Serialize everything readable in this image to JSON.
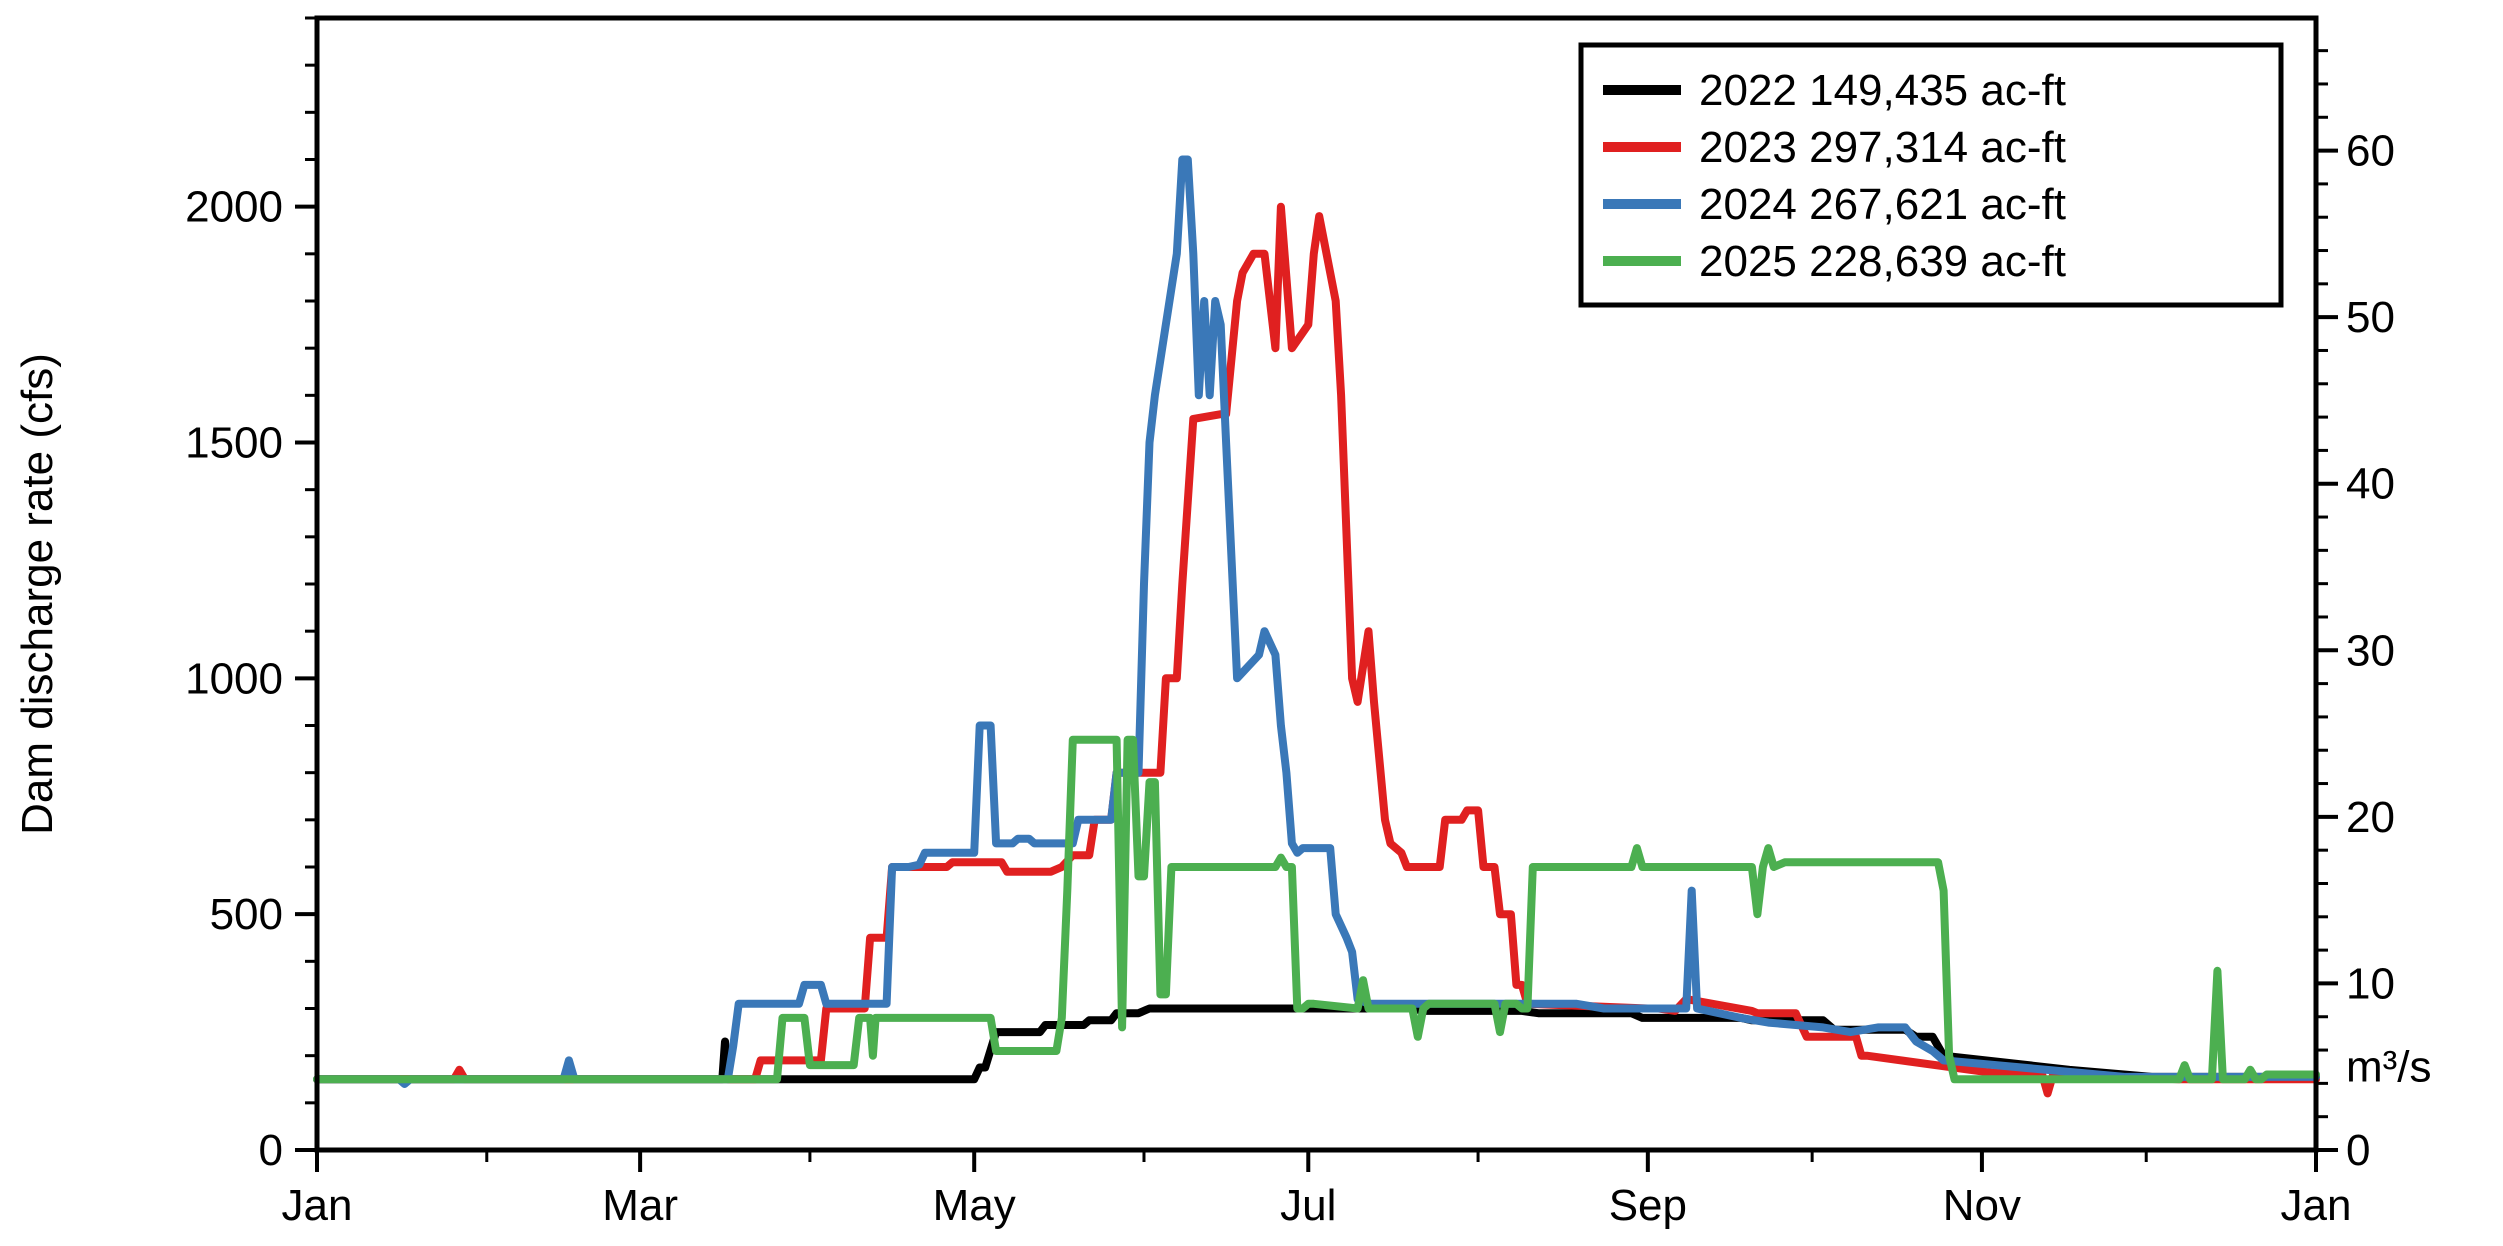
{
  "chart_data": {
    "type": "line",
    "ylabel": "Dam discharge rate (cfs)",
    "y2_unit_label": "m³/s",
    "xlim": [
      0,
      365
    ],
    "ylim": [
      0,
      2400
    ],
    "y2lim": [
      0,
      67.96
    ],
    "x_ticks": [
      {
        "pos": 0,
        "label": "Jan"
      },
      {
        "pos": 59,
        "label": "Mar"
      },
      {
        "pos": 120,
        "label": "May"
      },
      {
        "pos": 181,
        "label": "Jul"
      },
      {
        "pos": 243,
        "label": "Sep"
      },
      {
        "pos": 304,
        "label": "Nov"
      },
      {
        "pos": 365,
        "label": "Jan"
      }
    ],
    "y_ticks": [
      0,
      500,
      1000,
      1500,
      2000
    ],
    "y2_ticks": [
      0,
      10,
      20,
      30,
      40,
      50,
      60
    ],
    "grid": false,
    "legend_position": "top-right",
    "series": [
      {
        "name": "2022 149,435 ac-ft",
        "color": "#000000",
        "x": [
          0,
          70,
          74,
          74.5,
          75,
          112,
          113,
          120,
          121,
          122,
          124,
          125,
          132,
          133,
          140,
          141,
          145,
          146,
          150,
          152,
          200,
          202,
          220,
          223,
          240,
          242,
          260,
          262,
          275,
          277,
          290,
          292,
          295,
          297,
          320,
          335,
          365
        ],
        "y": [
          150,
          150,
          150,
          230,
          150,
          150,
          150,
          150,
          175,
          175,
          250,
          250,
          250,
          265,
          265,
          275,
          275,
          290,
          290,
          300,
          300,
          295,
          295,
          290,
          290,
          280,
          280,
          275,
          275,
          255,
          255,
          240,
          240,
          200,
          170,
          155,
          155
        ]
      },
      {
        "name": "2023 297,314 ac-ft",
        "color": "#e02020",
        "x": [
          0,
          25,
          26,
          27,
          78,
          80,
          81,
          92,
          93,
          100,
          101,
          104,
          105,
          115,
          116,
          125,
          126,
          134,
          136,
          138,
          141,
          142,
          145,
          146,
          154,
          155,
          157,
          158,
          160,
          165,
          166,
          168,
          169,
          171,
          173,
          175,
          176,
          178,
          181,
          182,
          183,
          184,
          186,
          187,
          189,
          190,
          192,
          193,
          195,
          196,
          198,
          199,
          200,
          204,
          205,
          206,
          209,
          210,
          212,
          213,
          215,
          216,
          218,
          219,
          220,
          221,
          243,
          245,
          248,
          250,
          262,
          263,
          270,
          272,
          281,
          282,
          283,
          305,
          310,
          315,
          316,
          317,
          340,
          365
        ],
        "y": [
          150,
          150,
          170,
          150,
          150,
          150,
          190,
          190,
          300,
          300,
          450,
          450,
          600,
          600,
          610,
          610,
          590,
          590,
          600,
          625,
          625,
          700,
          700,
          800,
          800,
          1000,
          1000,
          1200,
          1550,
          1560,
          1560,
          1800,
          1860,
          1900,
          1900,
          1700,
          2000,
          1700,
          1750,
          1900,
          1980,
          1920,
          1800,
          1600,
          1000,
          950,
          1100,
          950,
          700,
          650,
          630,
          600,
          600,
          600,
          600,
          700,
          700,
          720,
          720,
          600,
          600,
          500,
          500,
          350,
          350,
          310,
          300,
          300,
          295,
          320,
          295,
          290,
          290,
          240,
          240,
          200,
          200,
          165,
          160,
          160,
          120,
          160,
          150,
          150
        ]
      },
      {
        "name": "2024 267,621 ac-ft",
        "color": "#3a78b8",
        "x": [
          0,
          15,
          16,
          17,
          45,
          46,
          47,
          75,
          76,
          77,
          88,
          89,
          92,
          93,
          104,
          105,
          108,
          110,
          111,
          120,
          121,
          123,
          124,
          127,
          128,
          130,
          131,
          138,
          139,
          145,
          146,
          150,
          151,
          152,
          153,
          157,
          158,
          159,
          160,
          161,
          162,
          163,
          164,
          165,
          166,
          167,
          168,
          172,
          173,
          175,
          176,
          177,
          178,
          179,
          180,
          185,
          186,
          188,
          189,
          190,
          192,
          195,
          230,
          235,
          250,
          251,
          252,
          260,
          265,
          270,
          275,
          280,
          285,
          290,
          292,
          295,
          296,
          297,
          330,
          365
        ],
        "y": [
          150,
          150,
          140,
          150,
          150,
          190,
          150,
          150,
          220,
          310,
          310,
          350,
          350,
          310,
          310,
          600,
          600,
          605,
          630,
          630,
          900,
          900,
          650,
          650,
          660,
          660,
          650,
          650,
          700,
          700,
          800,
          800,
          1200,
          1500,
          1600,
          1900,
          2100,
          2100,
          1900,
          1600,
          1800,
          1600,
          1800,
          1750,
          1500,
          1250,
          1000,
          1050,
          1100,
          1050,
          900,
          800,
          650,
          630,
          640,
          640,
          500,
          450,
          420,
          320,
          310,
          310,
          310,
          300,
          300,
          550,
          300,
          280,
          270,
          265,
          260,
          250,
          260,
          260,
          230,
          210,
          200,
          190,
          155,
          155
        ]
      },
      {
        "name": "2025 228,639 ac-ft",
        "color": "#4caf50",
        "x": [
          0,
          83,
          84,
          85,
          86,
          89,
          90,
          98,
          99,
          100,
          101,
          101.5,
          102,
          123,
          124,
          135,
          136,
          137,
          138,
          146,
          147,
          148,
          149,
          150,
          151,
          152,
          153,
          154,
          155,
          156,
          175,
          176,
          177,
          178,
          179,
          180,
          181,
          182,
          190,
          191,
          192,
          200,
          201,
          202,
          203,
          204,
          215,
          216,
          217,
          219,
          220,
          221,
          222,
          240,
          241,
          242,
          243,
          262,
          263,
          264,
          265,
          266,
          268,
          296,
          297,
          298,
          299,
          302,
          303,
          340,
          341,
          342,
          346,
          347,
          348,
          352,
          353,
          354,
          355,
          356,
          365
        ],
        "y": [
          150,
          150,
          150,
          280,
          280,
          280,
          180,
          180,
          280,
          280,
          280,
          200,
          280,
          280,
          210,
          210,
          280,
          550,
          870,
          870,
          260,
          870,
          870,
          580,
          580,
          780,
          780,
          330,
          330,
          600,
          600,
          620,
          600,
          600,
          300,
          300,
          310,
          310,
          300,
          360,
          300,
          300,
          240,
          300,
          310,
          310,
          310,
          250,
          310,
          310,
          300,
          300,
          600,
          600,
          640,
          600,
          600,
          600,
          500,
          600,
          640,
          600,
          610,
          610,
          550,
          200,
          150,
          150,
          150,
          150,
          180,
          150,
          150,
          380,
          150,
          150,
          170,
          150,
          150,
          160,
          160
        ]
      }
    ]
  }
}
